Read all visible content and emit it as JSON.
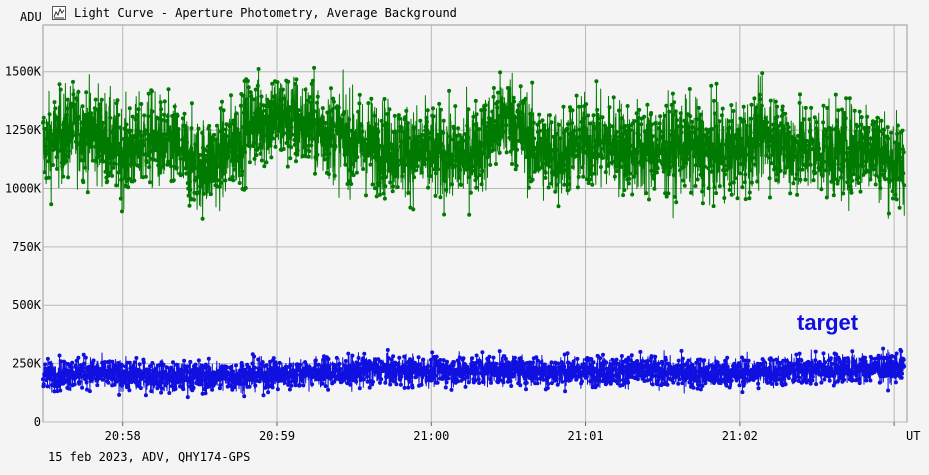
{
  "window": {
    "title": "Light Curve - Aperture Photometry, Average Background",
    "icon": "chart-icon"
  },
  "footer": {
    "text": "15 feb 2023, ADV, QHY174-GPS"
  },
  "chart_data": {
    "type": "line",
    "title": "Light Curve - Aperture Photometry, Average Background",
    "ylabel": "ADU",
    "xlabel": "UT",
    "ylim": [
      0,
      1700000
    ],
    "yticks": [
      0,
      250000,
      500000,
      750000,
      1000000,
      1250000,
      1500000
    ],
    "ytick_labels": [
      "0",
      "250K",
      "500K",
      "750K",
      "1000K",
      "1250K",
      "1500K"
    ],
    "xlim": [
      "20:57:29",
      "21:03:05"
    ],
    "xticks": [
      "20:58",
      "20:59",
      "21:00",
      "21:01",
      "21:02",
      "21:03"
    ],
    "xtick_labels": [
      "20:58",
      "20:59",
      "21:00",
      "21:01",
      "21:02",
      ""
    ],
    "grid": true,
    "legend": "none",
    "annotations": [
      {
        "text": "target",
        "color": "#1010e0"
      }
    ],
    "series": [
      {
        "color": "#007a00",
        "x": [
          "20:57:30",
          "20:57:40",
          "20:57:50",
          "20:58:00",
          "20:58:10",
          "20:58:20",
          "20:58:30",
          "20:58:40",
          "20:58:50",
          "20:59:00",
          "20:59:10",
          "20:59:20",
          "20:59:30",
          "20:59:40",
          "20:59:50",
          "21:00:00",
          "21:00:10",
          "21:00:20",
          "21:00:30",
          "21:00:40",
          "21:00:50",
          "21:01:00",
          "21:01:10",
          "21:01:20",
          "21:01:30",
          "21:01:40",
          "21:01:50",
          "21:02:00",
          "21:02:10",
          "21:02:20",
          "21:02:30",
          "21:02:40",
          "21:02:50",
          "21:03:00"
        ],
        "values": [
          1180000,
          1250000,
          1240000,
          1150000,
          1210000,
          1170000,
          1090000,
          1150000,
          1280000,
          1310000,
          1270000,
          1240000,
          1200000,
          1180000,
          1160000,
          1150000,
          1130000,
          1190000,
          1320000,
          1170000,
          1140000,
          1200000,
          1190000,
          1160000,
          1170000,
          1180000,
          1150000,
          1160000,
          1240000,
          1170000,
          1170000,
          1150000,
          1190000,
          1110000
        ],
        "min": 870000,
        "max": 1570000
      },
      {
        "name": "target",
        "color": "#1010e0",
        "x": [
          "20:57:30",
          "20:57:40",
          "20:57:50",
          "20:58:00",
          "20:58:10",
          "20:58:20",
          "20:58:30",
          "20:58:40",
          "20:58:50",
          "20:59:00",
          "20:59:10",
          "20:59:20",
          "20:59:30",
          "20:59:40",
          "20:59:50",
          "21:00:00",
          "21:00:10",
          "21:00:20",
          "21:00:30",
          "21:00:40",
          "21:00:50",
          "21:01:00",
          "21:01:10",
          "21:01:20",
          "21:01:30",
          "21:01:40",
          "21:01:50",
          "21:02:00",
          "21:02:10",
          "21:02:20",
          "21:02:30",
          "21:02:40",
          "21:02:50",
          "21:03:00"
        ],
        "values": [
          200000,
          210000,
          210000,
          200000,
          195000,
          190000,
          195000,
          195000,
          200000,
          205000,
          210000,
          215000,
          215000,
          220000,
          220000,
          220000,
          220000,
          225000,
          225000,
          220000,
          215000,
          215000,
          220000,
          220000,
          215000,
          210000,
          210000,
          210000,
          215000,
          220000,
          225000,
          230000,
          230000,
          235000
        ],
        "min": 100000,
        "max": 330000
      }
    ]
  }
}
